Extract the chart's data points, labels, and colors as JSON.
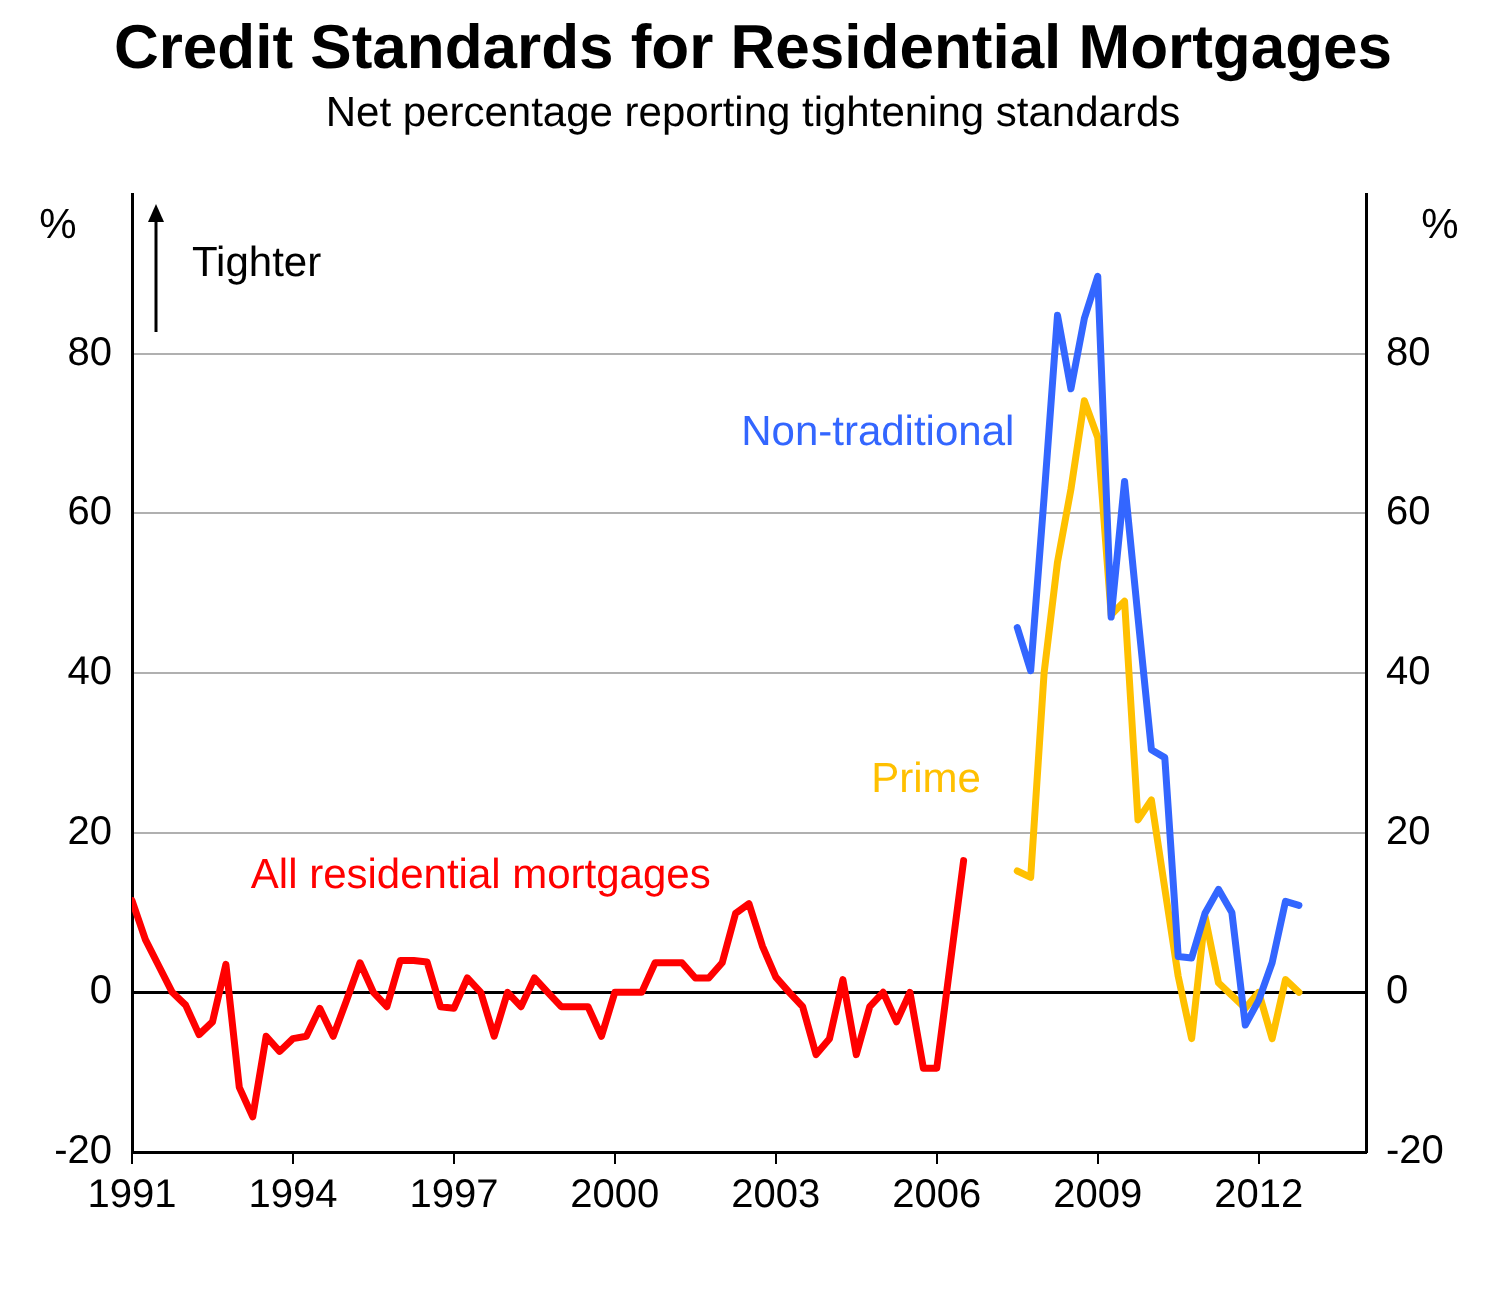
{
  "chart_data": {
    "type": "line",
    "title": "Credit Standards for Residential Mortgages",
    "subtitle": "Net percentage reporting tightening standards",
    "ylabel": "%",
    "y2label": "%",
    "annotations": [
      "Tighter"
    ],
    "xlim": [
      1991,
      2014
    ],
    "xticks": [
      1991,
      1994,
      1997,
      2000,
      2003,
      2006,
      2009,
      2012
    ],
    "ylim": [
      -20,
      100
    ],
    "yticks": [
      -20,
      0,
      20,
      40,
      60,
      80
    ],
    "y2lim": [
      -20,
      100
    ],
    "y2ticks": [
      -20,
      0,
      20,
      40,
      60,
      80
    ],
    "grid": "y",
    "legend": false,
    "marker": "none",
    "series": [
      {
        "name": "All residential mortgages",
        "color": "#ff0000",
        "x": [
          1991,
          1991.25,
          1991.5,
          1991.75,
          1992,
          1992.25,
          1992.5,
          1992.75,
          1993,
          1993.25,
          1993.5,
          1993.75,
          1994,
          1994.25,
          1994.5,
          1994.75,
          1995,
          1995.25,
          1995.5,
          1995.75,
          1996,
          1996.25,
          1996.5,
          1996.75,
          1997,
          1997.25,
          1997.5,
          1997.75,
          1998,
          1998.25,
          1998.5,
          1998.75,
          1999,
          1999.25,
          1999.5,
          1999.75,
          2000,
          2000.25,
          2000.5,
          2000.75,
          2001,
          2001.25,
          2001.5,
          2001.75,
          2002,
          2002.25,
          2002.5,
          2002.75,
          2003,
          2003.25,
          2003.5,
          2003.75,
          2004,
          2004.25,
          2004.5,
          2004.75,
          2005,
          2005.25,
          2005.5,
          2005.75,
          2006,
          2006.25,
          2006.5
        ],
        "values": [
          11.5,
          6.6,
          3.3,
          0,
          -1.6,
          -5.3,
          -3.7,
          3.5,
          -11.9,
          -15.6,
          -5.5,
          -7.4,
          -5.8,
          -5.5,
          -2,
          -5.5,
          -1,
          3.7,
          0,
          -1.8,
          4,
          4,
          3.8,
          -1.8,
          -2,
          1.8,
          0,
          -5.5,
          0,
          -1.8,
          1.8,
          0,
          -1.8,
          -1.8,
          -1.8,
          -5.5,
          0,
          0,
          0,
          3.7,
          3.7,
          3.7,
          1.8,
          1.8,
          3.7,
          9.9,
          11.1,
          5.8,
          1.9,
          0,
          -1.8,
          -7.8,
          -5.8,
          1.6,
          -7.8,
          -1.8,
          0,
          -3.7,
          0,
          -9.5,
          -9.5,
          3.5,
          16.5
        ]
      },
      {
        "name": "Non-traditional",
        "color": "#3366ff",
        "x": [
          2007.5,
          2007.75,
          2008,
          2008.25,
          2008.5,
          2008.75,
          2009,
          2009.25,
          2009.5,
          2009.75,
          2010,
          2010.25,
          2010.5,
          2010.75,
          2011,
          2011.25,
          2011.5,
          2011.75,
          2012,
          2012.25,
          2012.5,
          2012.75
        ],
        "values": [
          45.7,
          40.3,
          62,
          84.8,
          75.6,
          84.4,
          89.7,
          47,
          64,
          47,
          30.4,
          29.4,
          4.5,
          4.3,
          9.9,
          12.9,
          10,
          -4.1,
          -1,
          3.7,
          11.4,
          10.9
        ]
      },
      {
        "name": "Prime",
        "color": "#ffc000",
        "x": [
          2007.5,
          2007.75,
          2008,
          2008.25,
          2008.5,
          2008.75,
          2009,
          2009.25,
          2009.5,
          2009.75,
          2010,
          2010.25,
          2010.5,
          2010.75,
          2011,
          2011.25,
          2011.5,
          2011.75,
          2012,
          2012.25,
          2012.5,
          2012.75
        ],
        "values": [
          15.2,
          14.4,
          40,
          53.9,
          63,
          74.1,
          69.5,
          47.3,
          49,
          21.6,
          24.1,
          13,
          2,
          -5.8,
          9.5,
          1.2,
          -0.4,
          -2,
          0,
          -5.8,
          1.6,
          0
        ]
      }
    ]
  }
}
